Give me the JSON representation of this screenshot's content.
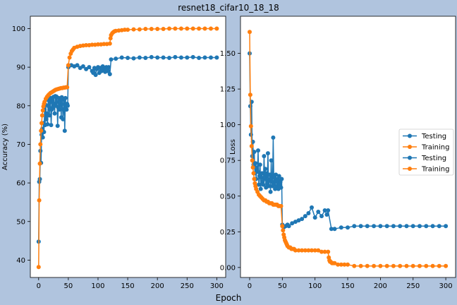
{
  "figure": {
    "title": "resnet18_cifar10_18_18",
    "xlabel": "Epoch",
    "background": "#b0c4de",
    "colors": {
      "testing": "#1f77b4",
      "training": "#ff7f0e"
    }
  },
  "chart_data": [
    {
      "type": "line",
      "name": "accuracy",
      "xlabel": "",
      "ylabel": "Accuracy (%)",
      "xlim": [
        -14,
        315
      ],
      "ylim": [
        35.5,
        103.2
      ],
      "xticks": [
        0,
        50,
        100,
        150,
        200,
        250,
        300
      ],
      "yticks": [
        40,
        50,
        60,
        70,
        80,
        90,
        100
      ],
      "legend": null,
      "series": [
        {
          "role": "testing",
          "x": [
            0,
            1,
            2,
            3,
            4,
            5,
            6,
            7,
            8,
            9,
            10,
            11,
            12,
            13,
            14,
            15,
            16,
            17,
            18,
            19,
            20,
            21,
            22,
            23,
            24,
            25,
            26,
            27,
            28,
            29,
            30,
            31,
            32,
            33,
            34,
            35,
            36,
            37,
            38,
            39,
            40,
            41,
            42,
            43,
            44,
            45,
            46,
            47,
            48,
            49,
            50,
            55,
            60,
            65,
            70,
            75,
            80,
            85,
            90,
            92,
            94,
            96,
            98,
            100,
            102,
            104,
            106,
            108,
            110,
            112,
            114,
            116,
            118,
            120,
            122,
            130,
            140,
            150,
            160,
            170,
            180,
            190,
            200,
            210,
            220,
            230,
            240,
            250,
            260,
            270,
            280,
            290,
            300
          ],
          "y": [
            44.8,
            60.3,
            61.0,
            68.3,
            65.2,
            72.5,
            74.0,
            71.8,
            75.5,
            73.2,
            79.0,
            75.0,
            80.2,
            76.5,
            78.0,
            75.2,
            81.5,
            79.8,
            77.5,
            80.8,
            82.0,
            75.0,
            79.0,
            81.5,
            79.5,
            82.3,
            80.5,
            78.0,
            82.5,
            80.0,
            82.4,
            81.0,
            74.8,
            79.5,
            82.0,
            79.0,
            80.5,
            81.5,
            77.0,
            82.2,
            80.5,
            76.5,
            79.0,
            81.5,
            73.5,
            82.0,
            80.0,
            79.0,
            80.5,
            80.0,
            90.0,
            90.5,
            90.2,
            90.5,
            89.8,
            90.2,
            89.5,
            90.0,
            89.0,
            88.5,
            89.8,
            88.0,
            89.5,
            90.0,
            88.5,
            89.8,
            89.0,
            90.2,
            89.5,
            88.8,
            90.0,
            89.0,
            90.0,
            88.2,
            92.0,
            92.2,
            92.5,
            92.4,
            92.3,
            92.5,
            92.4,
            92.6,
            92.5,
            92.5,
            92.4,
            92.6,
            92.5,
            92.5,
            92.6,
            92.4,
            92.5,
            92.5,
            92.5
          ]
        },
        {
          "role": "training",
          "x": [
            0,
            1,
            2,
            3,
            4,
            5,
            6,
            7,
            8,
            9,
            10,
            12,
            14,
            16,
            18,
            20,
            22,
            24,
            26,
            28,
            30,
            32,
            34,
            36,
            38,
            40,
            42,
            44,
            46,
            48,
            50,
            52,
            54,
            56,
            58,
            60,
            65,
            70,
            75,
            80,
            85,
            90,
            95,
            100,
            105,
            110,
            115,
            120,
            121,
            122,
            124,
            126,
            128,
            130,
            135,
            140,
            145,
            150,
            160,
            170,
            180,
            190,
            200,
            210,
            220,
            230,
            240,
            250,
            260,
            270,
            280,
            290,
            300
          ],
          "y": [
            38.2,
            55.5,
            65.0,
            70.0,
            73.5,
            75.5,
            77.5,
            78.8,
            79.8,
            80.5,
            81.0,
            81.8,
            82.3,
            82.7,
            83.0,
            83.3,
            83.5,
            83.7,
            83.9,
            84.1,
            84.2,
            84.3,
            84.4,
            84.5,
            84.6,
            84.6,
            84.7,
            84.7,
            84.8,
            84.8,
            90.5,
            92.5,
            93.5,
            94.2,
            94.6,
            95.0,
            95.3,
            95.5,
            95.6,
            95.7,
            95.7,
            95.8,
            95.8,
            95.9,
            95.9,
            96.0,
            96.0,
            96.1,
            97.5,
            98.3,
            98.8,
            99.1,
            99.3,
            99.4,
            99.5,
            99.6,
            99.7,
            99.7,
            99.8,
            99.8,
            99.9,
            99.9,
            99.9,
            99.9,
            100.0,
            100.0,
            100.0,
            100.0,
            100.0,
            100.0,
            100.0,
            100.0,
            100.0
          ]
        }
      ]
    },
    {
      "type": "line",
      "name": "loss",
      "xlabel": "",
      "ylabel": "Loss",
      "xlim": [
        -14,
        315
      ],
      "ylim": [
        -0.07,
        1.76
      ],
      "xticks": [
        0,
        50,
        100,
        150,
        200,
        250,
        300
      ],
      "yticks": [
        0.0,
        0.25,
        0.5,
        0.75,
        1.0,
        1.25,
        1.5
      ],
      "legend": "center-right",
      "series": [
        {
          "name": "Testing",
          "role": "testing",
          "x": [
            0,
            1,
            2,
            3,
            4,
            5,
            6,
            7,
            8,
            9,
            10,
            11,
            12,
            13,
            14,
            15,
            16,
            17,
            18,
            19,
            20,
            21,
            22,
            23,
            24,
            25,
            26,
            27,
            28,
            29,
            30,
            31,
            32,
            33,
            34,
            35,
            36,
            37,
            38,
            39,
            40,
            41,
            42,
            43,
            44,
            45,
            46,
            47,
            48,
            49,
            50,
            52,
            55,
            58,
            60,
            65,
            70,
            75,
            80,
            85,
            90,
            95,
            100,
            105,
            110,
            115,
            118,
            120,
            125,
            130,
            140,
            150,
            160,
            170,
            180,
            190,
            200,
            210,
            220,
            230,
            240,
            250,
            260,
            270,
            280,
            290,
            300
          ],
          "y": [
            1.5,
            1.13,
            0.93,
            1.16,
            0.78,
            0.88,
            0.72,
            0.81,
            0.66,
            0.73,
            0.62,
            0.7,
            0.67,
            0.82,
            0.58,
            0.64,
            0.72,
            0.55,
            0.63,
            0.66,
            0.6,
            0.58,
            0.78,
            0.62,
            0.69,
            0.56,
            0.66,
            0.59,
            0.8,
            0.57,
            0.61,
            0.65,
            0.53,
            0.75,
            0.6,
            0.57,
            0.91,
            0.58,
            0.63,
            0.55,
            0.65,
            0.6,
            0.57,
            0.62,
            0.55,
            0.64,
            0.58,
            0.6,
            0.56,
            0.62,
            0.3,
            0.28,
            0.29,
            0.3,
            0.29,
            0.31,
            0.32,
            0.33,
            0.34,
            0.36,
            0.38,
            0.42,
            0.35,
            0.39,
            0.36,
            0.4,
            0.37,
            0.4,
            0.27,
            0.27,
            0.28,
            0.28,
            0.29,
            0.29,
            0.29,
            0.29,
            0.29,
            0.29,
            0.29,
            0.29,
            0.29,
            0.29,
            0.29,
            0.29,
            0.29,
            0.29,
            0.29
          ]
        },
        {
          "name": "Training",
          "role": "training",
          "x": [
            0,
            1,
            2,
            3,
            4,
            5,
            6,
            7,
            8,
            9,
            10,
            12,
            14,
            16,
            18,
            20,
            22,
            24,
            26,
            28,
            30,
            32,
            34,
            36,
            38,
            40,
            42,
            44,
            46,
            48,
            50,
            51,
            52,
            53,
            54,
            55,
            56,
            57,
            58,
            60,
            62,
            64,
            66,
            68,
            70,
            75,
            80,
            85,
            90,
            95,
            100,
            105,
            110,
            115,
            120,
            121,
            122,
            123,
            124,
            126,
            128,
            130,
            135,
            140,
            145,
            150,
            160,
            170,
            180,
            190,
            200,
            210,
            220,
            230,
            240,
            250,
            260,
            270,
            280,
            290,
            300
          ],
          "y": [
            1.65,
            1.21,
            0.99,
            0.85,
            0.75,
            0.7,
            0.66,
            0.62,
            0.59,
            0.57,
            0.55,
            0.53,
            0.51,
            0.5,
            0.49,
            0.48,
            0.47,
            0.47,
            0.46,
            0.46,
            0.45,
            0.45,
            0.45,
            0.44,
            0.44,
            0.44,
            0.44,
            0.43,
            0.43,
            0.43,
            0.29,
            0.26,
            0.23,
            0.21,
            0.19,
            0.18,
            0.17,
            0.16,
            0.15,
            0.14,
            0.14,
            0.13,
            0.13,
            0.13,
            0.12,
            0.12,
            0.12,
            0.12,
            0.12,
            0.12,
            0.12,
            0.12,
            0.11,
            0.11,
            0.11,
            0.07,
            0.05,
            0.04,
            0.04,
            0.03,
            0.03,
            0.03,
            0.02,
            0.02,
            0.02,
            0.02,
            0.01,
            0.01,
            0.01,
            0.01,
            0.01,
            0.01,
            0.01,
            0.01,
            0.01,
            0.01,
            0.01,
            0.01,
            0.01,
            0.01,
            0.01
          ]
        }
      ],
      "legend_entries": [
        "Testing",
        "Training",
        "Testing",
        "Training"
      ]
    }
  ]
}
